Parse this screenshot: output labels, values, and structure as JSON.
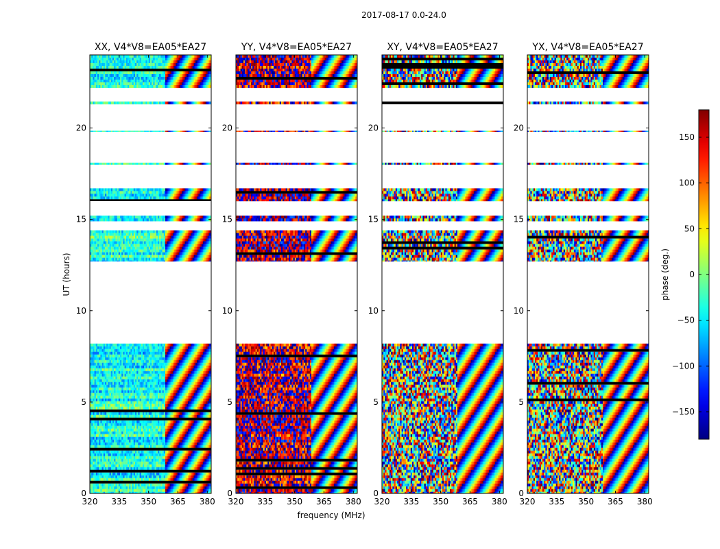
{
  "figure": {
    "suptitle": "2017-08-17 0.0-24.0"
  },
  "chart_data": {
    "type": "heatmap",
    "suptitle": "2017-08-17 0.0-24.0",
    "xlabel": "frequency (MHz)",
    "ylabel": "UT (hours)",
    "xlim": [
      320,
      382
    ],
    "ylim": [
      0,
      24
    ],
    "xticks": [
      320,
      335,
      350,
      365,
      380
    ],
    "yticks": [
      0,
      5,
      10,
      15,
      20
    ],
    "panels": [
      {
        "title": "XX, V4*V8=EA05*EA27",
        "pol": "XX",
        "base_phase": -35,
        "spread": 40
      },
      {
        "title": "YY, V4*V8=EA05*EA27",
        "pol": "YY",
        "base_phase": 165,
        "spread": 80
      },
      {
        "title": "XY, V4*V8=EA05*EA27",
        "pol": "XY",
        "base_phase": 0,
        "spread": 180
      },
      {
        "title": "YX, V4*V8=EA05*EA27",
        "pol": "YX",
        "base_phase": 90,
        "spread": 180
      }
    ],
    "data_time_ranges_hours": [
      [
        0.0,
        8.2
      ],
      [
        12.7,
        14.4
      ],
      [
        14.9,
        15.2
      ],
      [
        16.0,
        16.7
      ],
      [
        18.0,
        18.1
      ],
      [
        19.8,
        19.85
      ],
      [
        21.3,
        21.45
      ],
      [
        22.2,
        24.0
      ]
    ],
    "colorbar": {
      "label": "phase (deg.)",
      "range": [
        -180,
        180
      ],
      "ticks": [
        -150,
        -100,
        -50,
        0,
        50,
        100,
        150
      ],
      "tick_labels": [
        "−150",
        "−100",
        "−50",
        "0",
        "50",
        "100",
        "150"
      ],
      "colormap": "jet"
    }
  }
}
